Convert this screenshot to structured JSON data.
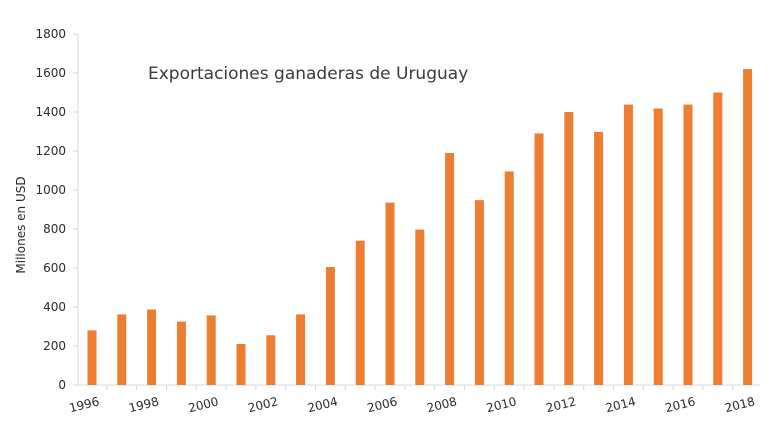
{
  "chart_data": {
    "type": "bar",
    "title": "Exportaciones ganaderas  de Uruguay",
    "xlabel": "",
    "ylabel": "Millones en USD",
    "categories": [
      "1996",
      "1997",
      "1998",
      "1999",
      "2000",
      "2001",
      "2002",
      "2003",
      "2004",
      "2005",
      "2006",
      "2007",
      "2008",
      "2009",
      "2010",
      "2011",
      "2012",
      "2013",
      "2014",
      "2015",
      "2016",
      "2017",
      "2018"
    ],
    "x_tick_labels": [
      "1996",
      "1998",
      "2000",
      "2002",
      "2004",
      "2006",
      "2008",
      "2010",
      "2012",
      "2014",
      "2016",
      "2018"
    ],
    "values": [
      280,
      362,
      387,
      325,
      357,
      210,
      255,
      362,
      605,
      740,
      935,
      797,
      1190,
      948,
      1095,
      1290,
      1400,
      1298,
      1438,
      1418,
      1438,
      1500,
      1620
    ],
    "ylim": [
      0,
      1800
    ],
    "yticks": [
      0,
      200,
      400,
      600,
      800,
      1000,
      1200,
      1400,
      1600,
      1800
    ],
    "grid": false,
    "legend": "none",
    "bar_color": "#ED7D31",
    "axis_color": "#D9D9D9"
  }
}
